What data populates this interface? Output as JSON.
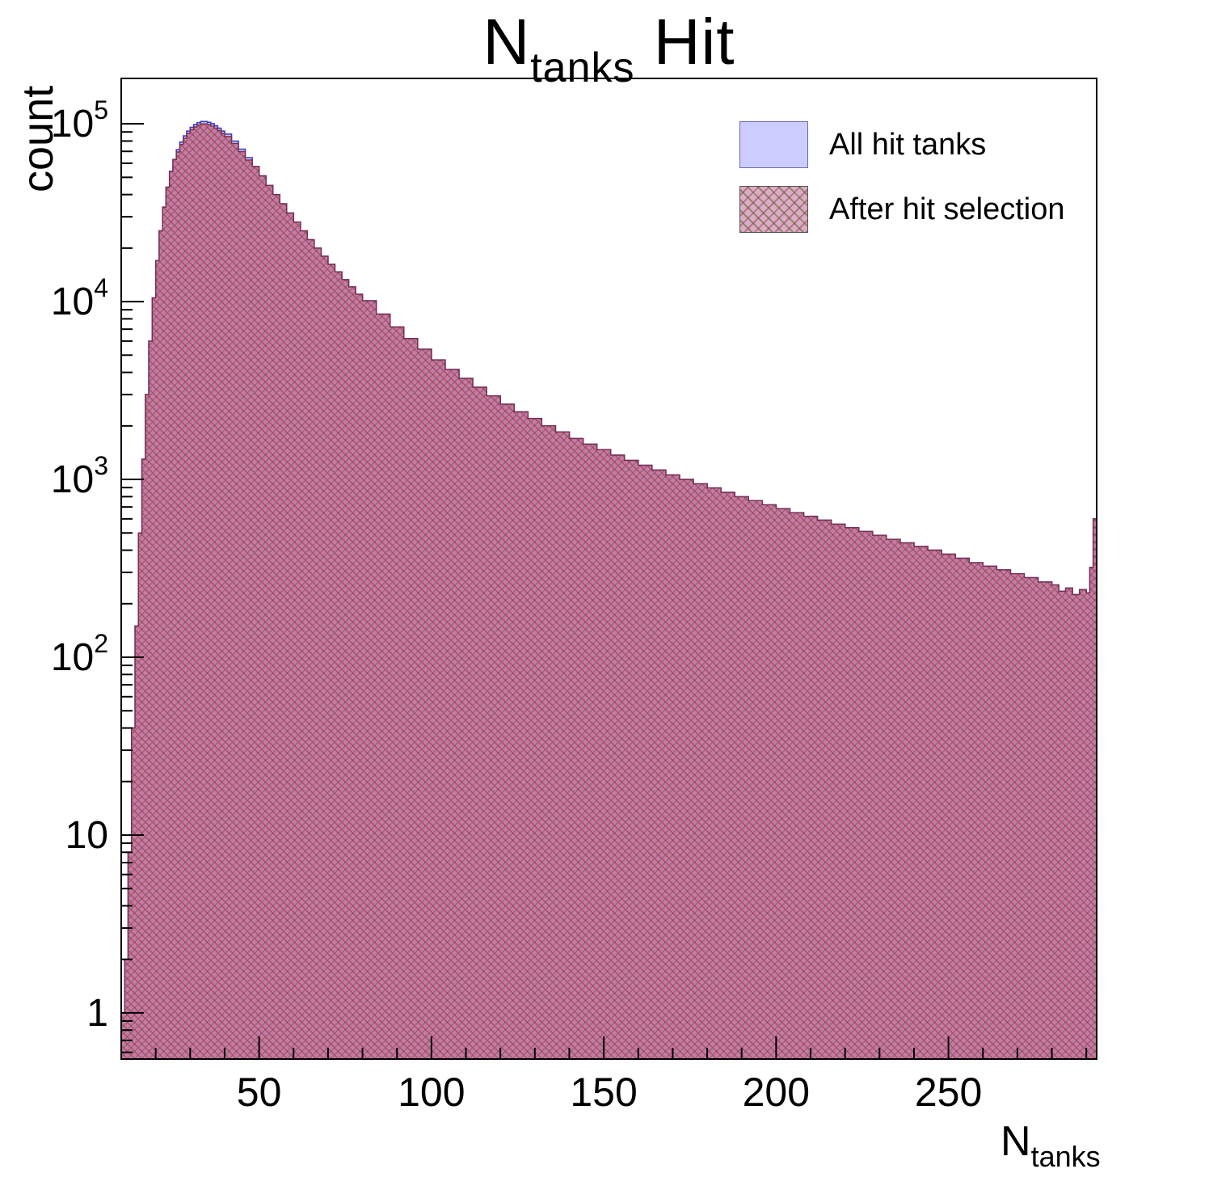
{
  "chart_data": {
    "type": "bar",
    "style": "step-histogram, overlaid, log y-axis",
    "title": {
      "main": "N",
      "sub": "tanks",
      "rest": " Hit"
    },
    "xlabel": {
      "main": "N",
      "sub": "tanks"
    },
    "ylabel": "count",
    "xlim": [
      10,
      293
    ],
    "ylim": [
      0.55,
      180000
    ],
    "x_major_ticks": [
      50,
      100,
      150,
      200,
      250
    ],
    "x_minor_step": 10,
    "y_major_ticks": [
      1,
      10,
      100,
      1000,
      10000,
      100000
    ],
    "grid": false,
    "legend_position": "top-right",
    "legend": [
      {
        "label": "All hit tanks",
        "fill": "#ccccfe",
        "edge": "#3b3bc8"
      },
      {
        "label": "After hit selection",
        "fill": "pink-crosshatch",
        "edge": "#7a2e4e"
      }
    ],
    "x": [
      10,
      11,
      12,
      13,
      14,
      15,
      16,
      17,
      18,
      19,
      20,
      21,
      22,
      23,
      24,
      25,
      26,
      27,
      28,
      29,
      30,
      31,
      32,
      33,
      34,
      35,
      36,
      37,
      38,
      39,
      40,
      42,
      44,
      46,
      48,
      50,
      52,
      54,
      56,
      58,
      60,
      62,
      64,
      66,
      68,
      70,
      72,
      74,
      76,
      78,
      80,
      84,
      88,
      92,
      96,
      100,
      104,
      108,
      112,
      116,
      120,
      124,
      128,
      132,
      136,
      140,
      144,
      148,
      152,
      156,
      160,
      164,
      168,
      172,
      176,
      180,
      184,
      188,
      192,
      196,
      200,
      204,
      208,
      212,
      216,
      220,
      224,
      228,
      232,
      236,
      240,
      244,
      248,
      252,
      256,
      260,
      264,
      268,
      272,
      276,
      280,
      282,
      284,
      286,
      288,
      290,
      291,
      292
    ],
    "series": [
      {
        "name": "All hit tanks",
        "values": [
          1,
          2,
          8,
          40,
          150,
          500,
          1300,
          3000,
          6000,
          10500,
          17000,
          25000,
          34000,
          44000,
          54000,
          63000,
          71500,
          79000,
          85500,
          91000,
          95500,
          99000,
          101500,
          103000,
          103000,
          102000,
          100000,
          97500,
          94500,
          91000,
          87500,
          80000,
          72000,
          64500,
          57500,
          51000,
          45000,
          40000,
          35500,
          31500,
          28000,
          25000,
          22300,
          20000,
          18000,
          16200,
          14700,
          13300,
          12100,
          11000,
          10100,
          8500,
          7200,
          6200,
          5400,
          4700,
          4150,
          3700,
          3300,
          2950,
          2650,
          2400,
          2200,
          2000,
          1850,
          1700,
          1580,
          1470,
          1370,
          1280,
          1200,
          1130,
          1060,
          1000,
          945,
          895,
          845,
          800,
          760,
          720,
          685,
          650,
          620,
          590,
          560,
          535,
          510,
          485,
          460,
          440,
          420,
          400,
          380,
          360,
          340,
          325,
          310,
          295,
          280,
          265,
          255,
          235,
          245,
          225,
          240,
          230,
          320,
          600
        ]
      },
      {
        "name": "After hit selection",
        "values": [
          1,
          2,
          8,
          40,
          150,
          500,
          1300,
          3000,
          6000,
          10500,
          17000,
          25000,
          34000,
          44000,
          54000,
          63000,
          69400,
          76600,
          82900,
          88300,
          92600,
          96000,
          98500,
          99900,
          99900,
          98900,
          97000,
          94600,
          91700,
          88300,
          84900,
          77600,
          69800,
          62600,
          57500,
          51000,
          45000,
          40000,
          35500,
          31500,
          28000,
          25000,
          22300,
          20000,
          18000,
          16200,
          14700,
          13300,
          12100,
          11000,
          10100,
          8500,
          7200,
          6200,
          5400,
          4700,
          4150,
          3700,
          3300,
          2950,
          2650,
          2400,
          2200,
          2000,
          1850,
          1700,
          1580,
          1470,
          1370,
          1280,
          1200,
          1130,
          1060,
          1000,
          945,
          895,
          845,
          800,
          760,
          720,
          685,
          650,
          620,
          590,
          560,
          535,
          510,
          485,
          460,
          440,
          420,
          400,
          380,
          360,
          340,
          325,
          310,
          295,
          280,
          265,
          255,
          235,
          245,
          225,
          240,
          230,
          320,
          600
        ]
      }
    ]
  }
}
